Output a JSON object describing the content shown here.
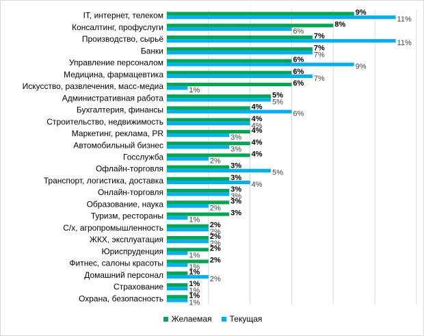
{
  "chart_data": {
    "type": "bar",
    "orientation": "horizontal",
    "categories": [
      "IT, интернет, телеком",
      "Консалтинг, профуслуги",
      "Производство, сырьё",
      "Банки",
      "Управление персоналом",
      "Медицина, фармацевтика",
      "Искусство, развлечения, масс-медиа",
      "Административная работа",
      "Бухгалтерия, финансы",
      "Строительство, недвижимость",
      "Маркетинг, реклама, PR",
      "Автомобильный бизнес",
      "Госслужба",
      "Офлайн-торговля",
      "Транспорт, логистика, доставка",
      "Онлайн-торговля",
      "Образование, наука",
      "Туризм, рестораны",
      "С/х, агропромышленность",
      "ЖКХ, эксплуатация",
      "Юриспруденция",
      "Фитнес, салоны красоты",
      "Домашний персонал",
      "Страхование",
      "Охрана, безопасность"
    ],
    "series": [
      {
        "name": "Желаемая",
        "color": "#00a651",
        "values": [
          9,
          8,
          7,
          7,
          6,
          6,
          6,
          5,
          4,
          4,
          4,
          4,
          4,
          3,
          3,
          3,
          3,
          3,
          2,
          2,
          2,
          2,
          1,
          1,
          1
        ],
        "labels": [
          "9%",
          "8%",
          "7%",
          "7%",
          "6%",
          "6%",
          "6%",
          "5%",
          "4%",
          "4%",
          "4%",
          "4%",
          "4%",
          "3%",
          "3%",
          "3%",
          "3%",
          "3%",
          "2%",
          "2%",
          "2%",
          "2%",
          "1%",
          "1%",
          "1%"
        ]
      },
      {
        "name": "Текущая",
        "color": "#00b0f0",
        "values": [
          11,
          6,
          11,
          7,
          9,
          7,
          1,
          5,
          6,
          4,
          3,
          3,
          2,
          5,
          4,
          3,
          2,
          1,
          2,
          2,
          1,
          1,
          2,
          1,
          1
        ],
        "labels": [
          "11%",
          "6%",
          "11%",
          "7%",
          "9%",
          "7%",
          "1%",
          "5%",
          "6%",
          "4%",
          "3%",
          "3%",
          "2%",
          "5%",
          "4%",
          "3%",
          "2%",
          "1%",
          "2%",
          "2%",
          "1%",
          "1%",
          "2%",
          "1%",
          "1%"
        ]
      }
    ],
    "xlim": [
      0,
      12
    ],
    "grid": true,
    "legend_position": "bottom",
    "title": "",
    "xlabel": "",
    "ylabel": ""
  }
}
